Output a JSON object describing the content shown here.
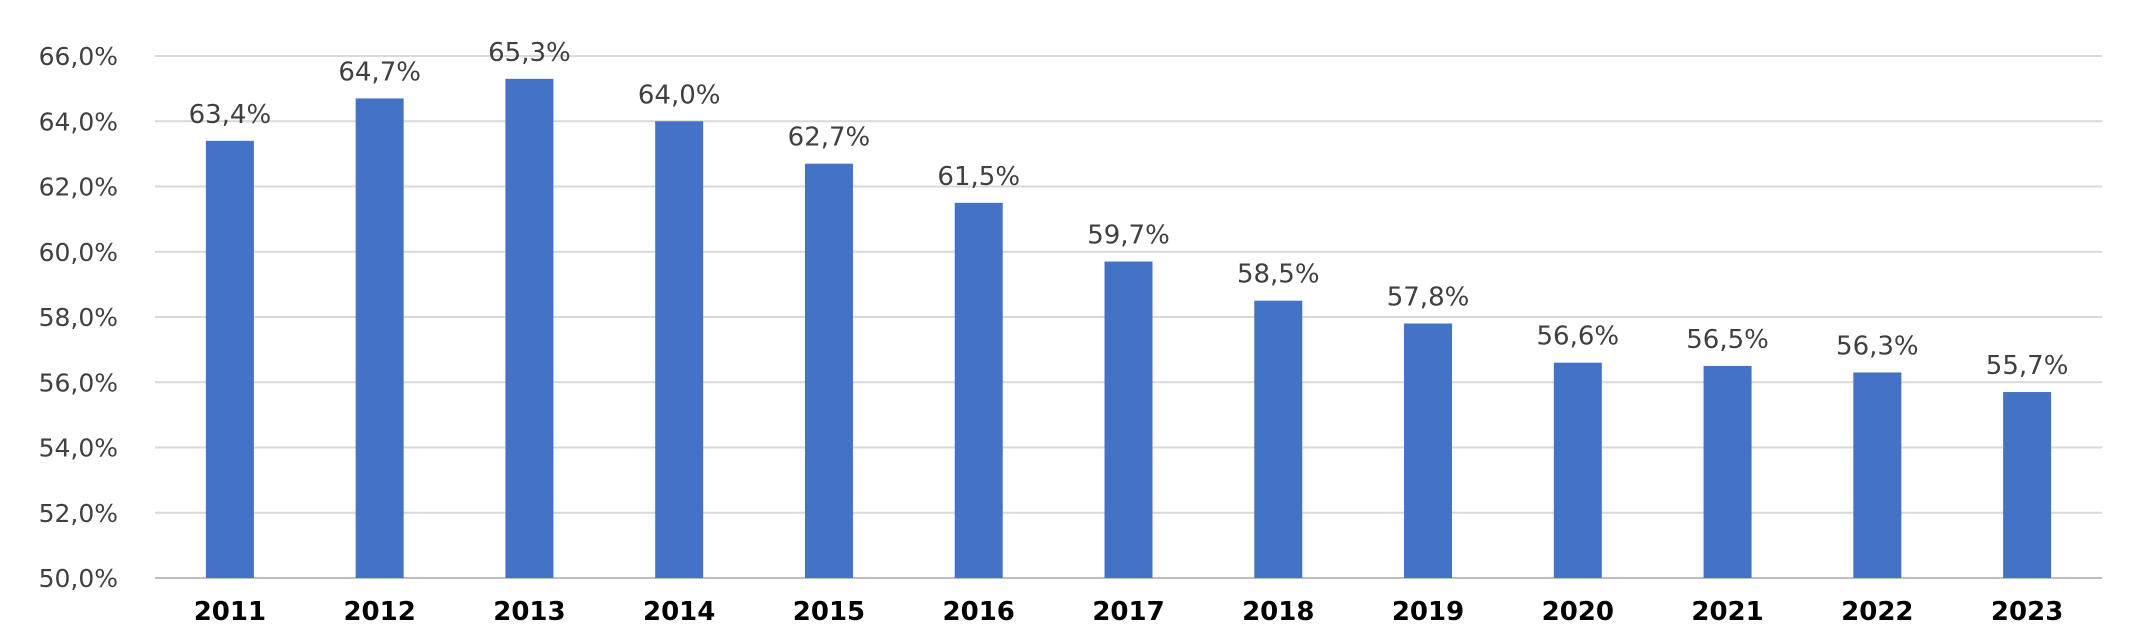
{
  "chart_data": {
    "type": "bar",
    "title": "",
    "xlabel": "",
    "ylabel": "",
    "categories": [
      "2011",
      "2012",
      "2013",
      "2014",
      "2015",
      "2016",
      "2017",
      "2018",
      "2019",
      "2020",
      "2021",
      "2022",
      "2023"
    ],
    "values": [
      63.4,
      64.7,
      65.3,
      64.0,
      62.7,
      61.5,
      59.7,
      58.5,
      57.8,
      56.6,
      56.5,
      56.3,
      55.7
    ],
    "data_labels": [
      "63,4%",
      "64,7%",
      "65,3%",
      "64,0%",
      "62,7%",
      "61,5%",
      "59,7%",
      "58,5%",
      "57,8%",
      "56,6%",
      "56,5%",
      "56,3%",
      "55,7%"
    ],
    "ylim": [
      50,
      66
    ],
    "yticks": [
      50,
      52,
      54,
      56,
      58,
      60,
      62,
      64,
      66
    ],
    "ytick_labels": [
      "50,0%",
      "52,0%",
      "54,0%",
      "56,0%",
      "58,0%",
      "60,0%",
      "62,0%",
      "64,0%",
      "66,0%"
    ],
    "grid": true,
    "legend": "none",
    "bar_color": "#4472C4",
    "gridline_color": "#D9D9D9"
  }
}
